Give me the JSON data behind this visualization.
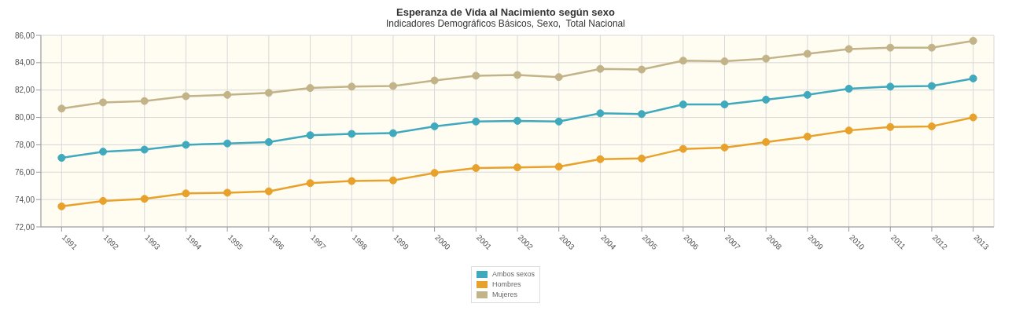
{
  "chart_data": {
    "type": "line",
    "title": "Esperanza de Vida al Nacimiento según sexo",
    "subtitle": "Indicadores Demográficos Básicos, Sexo,  Total Nacional",
    "categories": [
      "1991",
      "1992",
      "1993",
      "1994",
      "1995",
      "1996",
      "1997",
      "1998",
      "1999",
      "2000",
      "2001",
      "2002",
      "2003",
      "2004",
      "2005",
      "2006",
      "2007",
      "2008",
      "2009",
      "2010",
      "2011",
      "2012",
      "2013"
    ],
    "series": [
      {
        "name": "Ambos sexos",
        "color": "#3fa9bd",
        "values": [
          77.05,
          77.5,
          77.65,
          78.0,
          78.1,
          78.2,
          78.7,
          78.8,
          78.85,
          79.35,
          79.7,
          79.75,
          79.7,
          80.3,
          80.25,
          80.95,
          80.95,
          81.3,
          81.65,
          82.1,
          82.25,
          82.3,
          82.85
        ]
      },
      {
        "name": "Hombres",
        "color": "#e8a22c",
        "values": [
          73.5,
          73.9,
          74.05,
          74.45,
          74.5,
          74.6,
          75.2,
          75.35,
          75.4,
          75.95,
          76.3,
          76.35,
          76.4,
          76.95,
          77.0,
          77.7,
          77.8,
          78.2,
          78.6,
          79.05,
          79.3,
          79.35,
          80.0
        ]
      },
      {
        "name": "Mujeres",
        "color": "#c2b488",
        "values": [
          80.65,
          81.1,
          81.2,
          81.55,
          81.65,
          81.8,
          82.15,
          82.25,
          82.3,
          82.7,
          83.05,
          83.1,
          82.95,
          83.55,
          83.5,
          84.15,
          84.1,
          84.3,
          84.65,
          85.0,
          85.1,
          85.1,
          85.6
        ]
      }
    ],
    "ylim": [
      72,
      86
    ],
    "yticks": [
      {
        "value": 72,
        "label": "72,00"
      },
      {
        "value": 74,
        "label": "74,00"
      },
      {
        "value": 76,
        "label": "76,00"
      },
      {
        "value": 78,
        "label": "78,00"
      },
      {
        "value": 80,
        "label": "80,00"
      },
      {
        "value": 82,
        "label": "82,00"
      },
      {
        "value": 84,
        "label": "84,00"
      },
      {
        "value": 86,
        "label": "86,00"
      }
    ],
    "grid": true,
    "legend": "bottom",
    "marker": "circle",
    "line_style": "solid"
  }
}
